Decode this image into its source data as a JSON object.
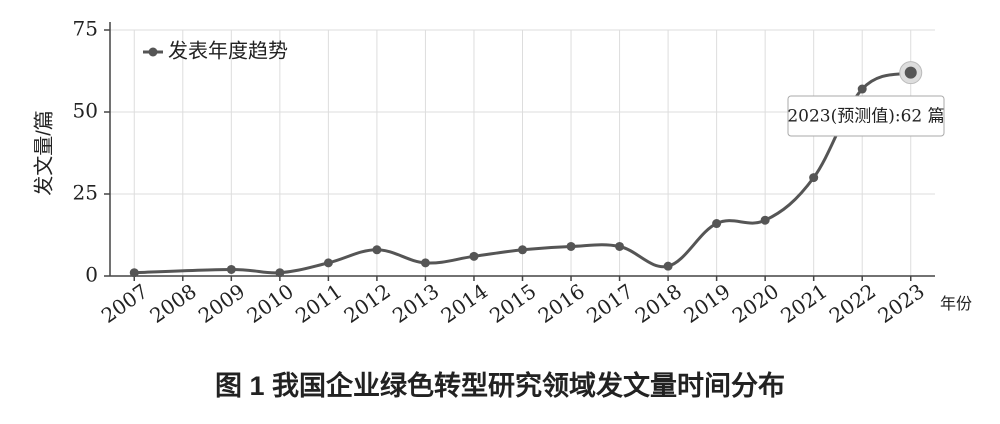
{
  "chart_data": {
    "type": "line",
    "title": "图 1  我国企业绿色转型研究领域发文量时间分布",
    "y_label": "发文量/篇",
    "x_label": "年份",
    "x": [
      2007,
      2009,
      2010,
      2011,
      2012,
      2013,
      2014,
      2015,
      2016,
      2017,
      2018,
      2019,
      2020,
      2021,
      2022,
      2023
    ],
    "series": [
      {
        "name": "发表年度趋势",
        "color": "#555555",
        "values": [
          1,
          2,
          1,
          4,
          8,
          4,
          6,
          8,
          9,
          9,
          3,
          16,
          17,
          30,
          57,
          62
        ]
      }
    ],
    "annotation": "2023(预测值):62 篇",
    "xlim": [
      2006.5,
      2023.5
    ],
    "xticks": [
      2007,
      2008,
      2009,
      2010,
      2011,
      2012,
      2013,
      2014,
      2015,
      2016,
      2017,
      2018,
      2019,
      2020,
      2021,
      2022,
      2023
    ],
    "ylim": [
      0,
      75
    ],
    "yticks": [
      0,
      25,
      50,
      75
    ],
    "grid": true,
    "legend": "top-left"
  }
}
